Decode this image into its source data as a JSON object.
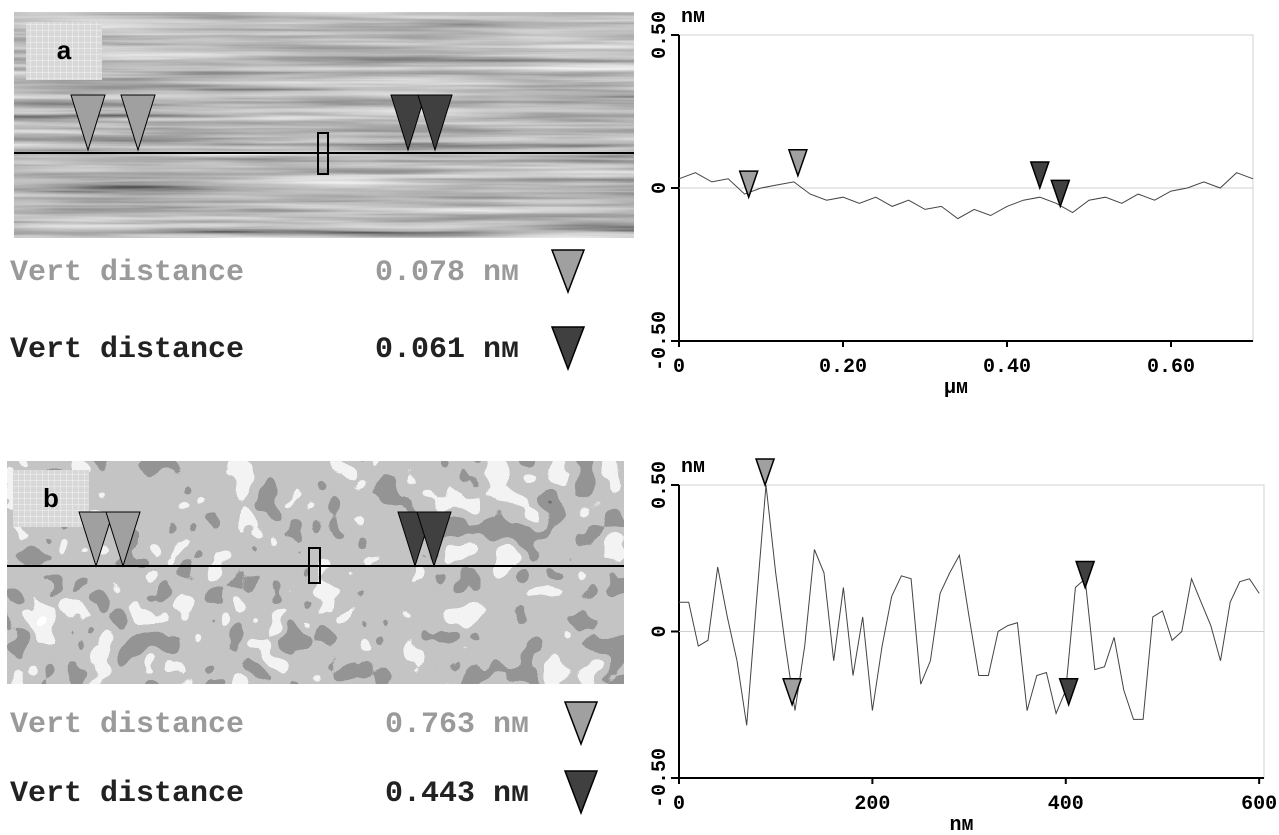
{
  "panels": [
    {
      "label": "a",
      "measurements": [
        {
          "label": "Vert distance",
          "value": "0.078 nм",
          "color": "#a0a0a0"
        },
        {
          "label": "Vert distance",
          "value": "0.061 nм",
          "color": "#404040"
        }
      ]
    },
    {
      "label": "b",
      "measurements": [
        {
          "label": "Vert distance",
          "value": "0.763 nм",
          "color": "#a0a0a0"
        },
        {
          "label": "Vert distance",
          "value": "0.443 nм",
          "color": "#404040"
        }
      ]
    }
  ],
  "chart_data": [
    {
      "type": "line",
      "y_unit": "nм",
      "x_label": "μм",
      "color": "#444444",
      "x": [
        0,
        0.02,
        0.04,
        0.06,
        0.08,
        0.1,
        0.12,
        0.14,
        0.16,
        0.18,
        0.2,
        0.22,
        0.24,
        0.26,
        0.28,
        0.3,
        0.32,
        0.34,
        0.36,
        0.38,
        0.4,
        0.42,
        0.44,
        0.46,
        0.48,
        0.5,
        0.52,
        0.54,
        0.56,
        0.58,
        0.6,
        0.62,
        0.64,
        0.66,
        0.68,
        0.7
      ],
      "values": [
        0.03,
        0.05,
        0.02,
        0.03,
        -0.02,
        0.0,
        0.01,
        0.02,
        -0.02,
        -0.04,
        -0.03,
        -0.05,
        -0.03,
        -0.06,
        -0.04,
        -0.07,
        -0.06,
        -0.1,
        -0.07,
        -0.09,
        -0.06,
        -0.04,
        -0.03,
        -0.05,
        -0.08,
        -0.04,
        -0.03,
        -0.05,
        -0.02,
        -0.04,
        -0.01,
        0.0,
        0.02,
        0.0,
        0.05,
        0.03
      ],
      "xlim": [
        0,
        0.7
      ],
      "ylim": [
        -0.5,
        0.5
      ],
      "xticks": [
        0,
        {
          "value": 0.2,
          "label": "0.20"
        },
        {
          "value": 0.4,
          "label": "0.40"
        },
        {
          "value": 0.6,
          "label": "0.60"
        }
      ],
      "yticks": [
        {
          "value": -0.5,
          "label": "-0.50"
        },
        0,
        {
          "value": 0.5,
          "label": "0.50"
        }
      ],
      "cursors": [
        {
          "x": 0.085,
          "y": -0.03,
          "color": "#a0a0a0"
        },
        {
          "x": 0.145,
          "y": 0.04,
          "color": "#a0a0a0"
        },
        {
          "x": 0.44,
          "y": 0.0,
          "color": "#404040"
        },
        {
          "x": 0.465,
          "y": -0.06,
          "color": "#404040"
        }
      ]
    },
    {
      "type": "line",
      "y_unit": "nм",
      "x_label": "nм",
      "color": "#444444",
      "x": [
        0,
        10,
        20,
        30,
        40,
        50,
        60,
        70,
        80,
        90,
        100,
        110,
        120,
        130,
        140,
        150,
        160,
        170,
        180,
        190,
        200,
        210,
        220,
        230,
        240,
        250,
        260,
        270,
        280,
        290,
        300,
        310,
        320,
        330,
        340,
        350,
        360,
        370,
        380,
        390,
        400,
        410,
        420,
        430,
        440,
        450,
        460,
        470,
        480,
        490,
        500,
        510,
        520,
        530,
        540,
        550,
        560,
        570,
        580,
        590,
        600
      ],
      "values": [
        0.1,
        0.1,
        -0.05,
        -0.03,
        0.22,
        0.05,
        -0.1,
        -0.32,
        0.1,
        0.5,
        0.2,
        -0.05,
        -0.27,
        -0.05,
        0.28,
        0.2,
        -0.1,
        0.15,
        -0.15,
        0.05,
        -0.27,
        -0.05,
        0.12,
        0.19,
        0.18,
        -0.18,
        -0.1,
        0.13,
        0.2,
        0.26,
        0.05,
        -0.15,
        -0.15,
        0.0,
        0.02,
        0.03,
        -0.27,
        -0.15,
        -0.14,
        -0.28,
        -0.2,
        0.15,
        0.18,
        -0.13,
        -0.12,
        -0.02,
        -0.2,
        -0.3,
        -0.3,
        0.05,
        0.07,
        -0.03,
        0.0,
        0.18,
        0.1,
        0.02,
        -0.1,
        0.1,
        0.17,
        0.18,
        0.13
      ],
      "xlim": [
        0,
        605
      ],
      "ylim": [
        -0.5,
        0.5
      ],
      "xticks": [
        0,
        200,
        400,
        600
      ],
      "yticks": [
        {
          "value": -0.5,
          "label": "-0.50"
        },
        0,
        {
          "value": 0.5,
          "label": "0.50"
        }
      ],
      "cursors": [
        {
          "x": 89,
          "y": 0.5,
          "color": "#a0a0a0"
        },
        {
          "x": 117,
          "y": -0.25,
          "color": "#a0a0a0"
        },
        {
          "x": 403,
          "y": -0.25,
          "color": "#404040"
        },
        {
          "x": 420,
          "y": 0.15,
          "color": "#404040"
        }
      ]
    }
  ]
}
